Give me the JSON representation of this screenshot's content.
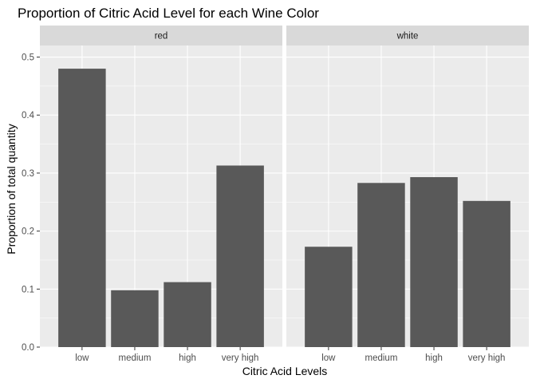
{
  "chart_data": {
    "type": "bar",
    "title": "Proportion of Citric Acid Level for each Wine Color",
    "xlabel": "Citric Acid Levels",
    "ylabel": "Proportion of total quantity",
    "categories": [
      "low",
      "medium",
      "high",
      "very high"
    ],
    "ylim": [
      0,
      0.52
    ],
    "yticks": [
      "0.0",
      "0.1",
      "0.2",
      "0.3",
      "0.4",
      "0.5"
    ],
    "grid": true,
    "bar_color": "#595959",
    "panel_background": "#ebebeb",
    "strip_background": "#d9d9d9",
    "panels": [
      {
        "facet": "red",
        "values": [
          0.48,
          0.098,
          0.112,
          0.313
        ]
      },
      {
        "facet": "white",
        "values": [
          0.173,
          0.283,
          0.293,
          0.252
        ]
      }
    ]
  }
}
